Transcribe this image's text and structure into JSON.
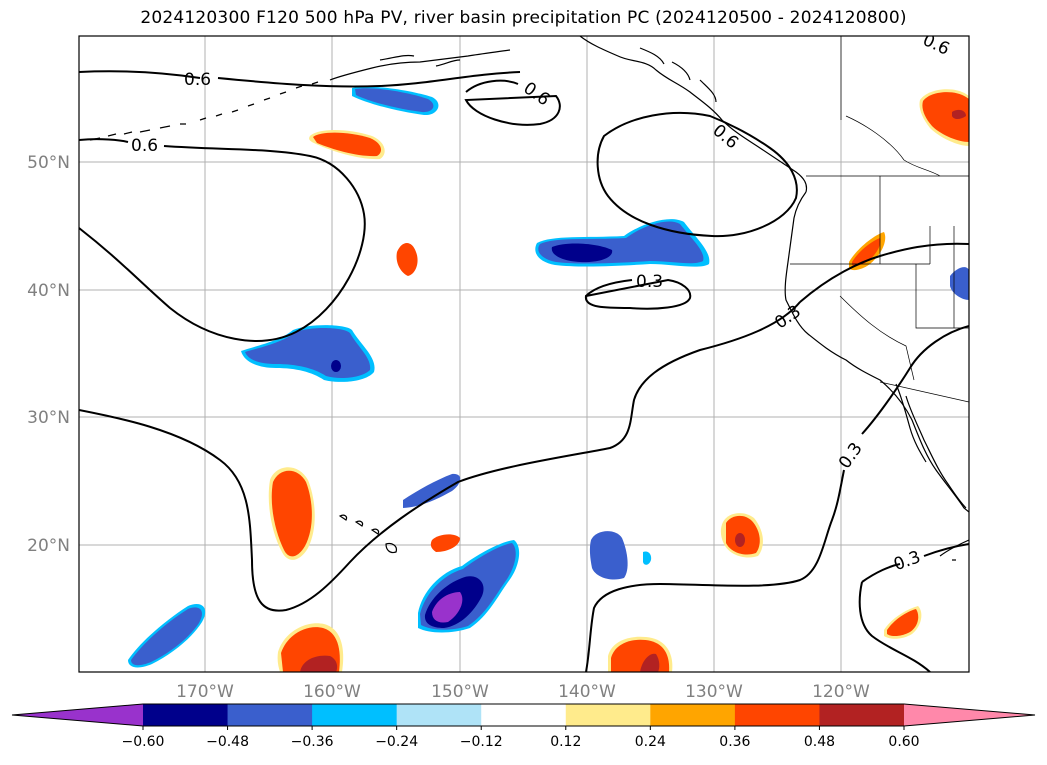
{
  "title": "2024120300 F120 500 hPa PV, river basin precipitation PC (2024120500 - 2024120800)",
  "lat_labels": [
    "50°N",
    "40°N",
    "30°N",
    "20°N"
  ],
  "lon_labels": [
    "170°W",
    "160°W",
    "150°W",
    "140°W",
    "130°W",
    "120°W"
  ],
  "contour_labels": [
    "0.6",
    "0.6",
    "0.6",
    "0.6",
    "0.6",
    "0.3",
    "0.3",
    "0.3",
    "0.3"
  ],
  "colorbar": {
    "ticks": [
      "−0.60",
      "−0.48",
      "−0.36",
      "−0.24",
      "−0.12",
      "0.12",
      "0.24",
      "0.36",
      "0.48",
      "0.60"
    ],
    "colors": [
      "#9932cc",
      "#00008b",
      "#3a5fcd",
      "#00bfff",
      "#afe3f7",
      "#ffffff",
      "#ffeb8c",
      "#ffa500",
      "#ff4500",
      "#b22222",
      "#ff88aa"
    ]
  },
  "colors": {
    "neg_strong": "#9932cc",
    "neg_dark": "#00008b",
    "neg_mid": "#3a5fcd",
    "pos_mid": "#ff4500",
    "pos_dark": "#b22222",
    "pos_light": "#ffa500",
    "pos_pale": "#ffeb8c"
  }
}
